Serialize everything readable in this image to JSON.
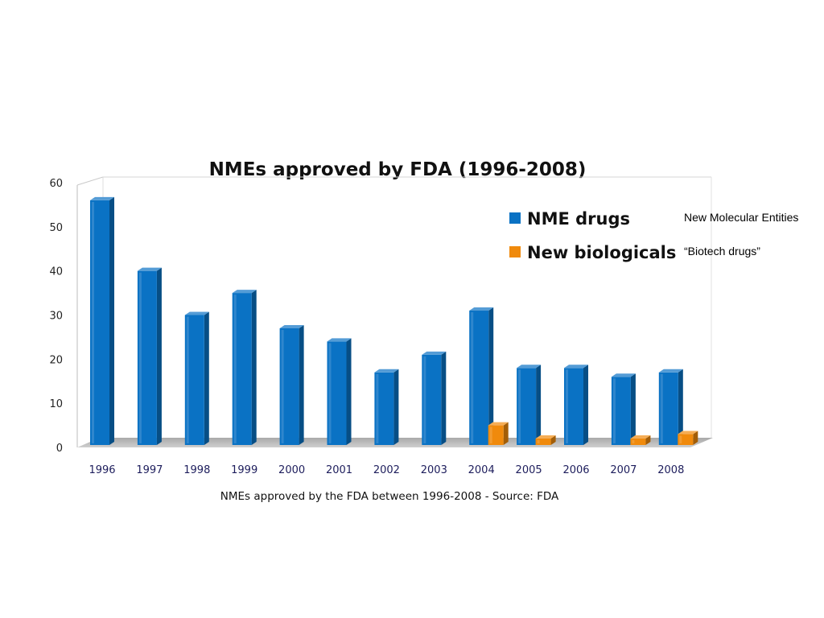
{
  "chart_data": {
    "type": "bar",
    "title": "NMEs approved by FDA (1996-2008)",
    "caption": "NMEs approved by the FDA between 1996-2008 - Source: FDA",
    "categories": [
      "1996",
      "1997",
      "1998",
      "1999",
      "2000",
      "2001",
      "2002",
      "2003",
      "2004",
      "2005",
      "2006",
      "2007",
      "2008"
    ],
    "series": [
      {
        "name": "NME drugs",
        "color": "#0a72c4",
        "values": [
          56,
          40,
          30,
          35,
          27,
          24,
          17,
          21,
          31,
          18,
          18,
          16,
          17
        ]
      },
      {
        "name": "New biologicals",
        "color": "#f08a0c",
        "values": [
          0,
          0,
          0,
          0,
          0,
          0,
          0,
          0,
          5,
          2,
          0,
          2,
          3
        ]
      }
    ],
    "ylim": [
      0,
      60
    ],
    "yticks": [
      "0",
      "10",
      "20",
      "30",
      "40",
      "50",
      "60"
    ],
    "legend_position": "top-right",
    "style": "3d-column",
    "grid": false
  },
  "annotations": {
    "nme_note": "New Molecular Entities",
    "biologicals_note": "“Biotech drugs”"
  }
}
